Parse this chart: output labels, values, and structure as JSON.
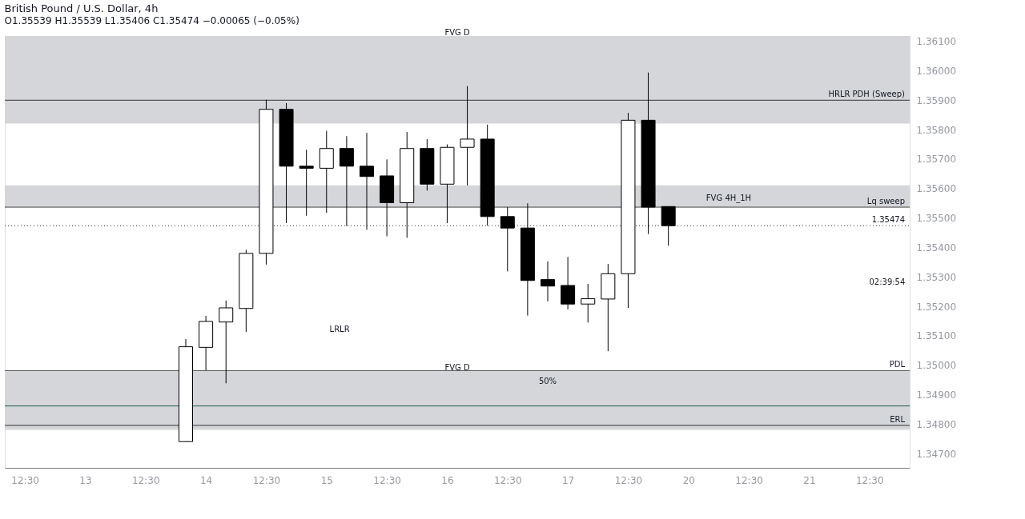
{
  "chart_data": {
    "type": "candlestick",
    "title": "British Pound / U.S. Dollar, 4h",
    "subtitle": "O1.35539 H1.35539 L1.35406 C1.35474 −0.00065 (−0.05%)",
    "categories": [
      "12:30",
      null,
      null,
      "13",
      null,
      null,
      "12:30",
      null,
      null,
      "14",
      null,
      null,
      "12:30",
      null,
      null,
      "15",
      null,
      null,
      "12:30",
      null,
      null,
      "16",
      null,
      null,
      "12:30",
      null,
      null,
      "17",
      null,
      null,
      "12:30",
      null,
      null,
      "20",
      null,
      null,
      "12:30",
      null,
      null,
      "21",
      null,
      null,
      "12:30",
      null
    ],
    "ohlc": [
      null,
      null,
      null,
      null,
      null,
      null,
      null,
      null,
      [
        1.34741,
        1.35089,
        1.34741,
        1.35063
      ],
      [
        1.35061,
        1.35168,
        1.34983,
        1.35149
      ],
      [
        1.35147,
        1.3522,
        1.34939,
        1.35195
      ],
      [
        1.35193,
        1.35392,
        1.35113,
        1.3538
      ],
      [
        1.3538,
        1.35902,
        1.35342,
        1.35869
      ],
      [
        1.35869,
        1.3589,
        1.35483,
        1.35676
      ],
      [
        1.35676,
        1.35732,
        1.35508,
        1.35669
      ],
      [
        1.35669,
        1.35796,
        1.35518,
        1.35736
      ],
      [
        1.35736,
        1.35778,
        1.35473,
        1.35676
      ],
      [
        1.35676,
        1.35789,
        1.3546,
        1.35641
      ],
      [
        1.35643,
        1.35699,
        1.35438,
        1.35552
      ],
      [
        1.35552,
        1.35792,
        1.35433,
        1.35736
      ],
      [
        1.35736,
        1.35768,
        1.35593,
        1.35615
      ],
      [
        1.35615,
        1.3575,
        1.35483,
        1.3574
      ],
      [
        1.3574,
        1.35948,
        1.35611,
        1.35768
      ],
      [
        1.35768,
        1.35817,
        1.35474,
        1.35505
      ],
      [
        1.35505,
        1.35537,
        1.35319,
        1.35466
      ],
      [
        1.35466,
        1.3555,
        1.35169,
        1.35288
      ],
      [
        1.35291,
        1.35353,
        1.35217,
        1.35269
      ],
      [
        1.35271,
        1.35368,
        1.3519,
        1.35208
      ],
      [
        1.35208,
        1.35276,
        1.35145,
        1.35226
      ],
      [
        1.35225,
        1.35344,
        1.35048,
        1.35311
      ],
      [
        1.35311,
        1.35857,
        1.35195,
        1.35832
      ],
      [
        1.35832,
        1.35994,
        1.35446,
        1.35537
      ],
      [
        1.35539,
        1.35539,
        1.35406,
        1.35474
      ],
      null,
      null,
      null,
      null,
      null,
      null,
      null,
      null,
      null,
      null,
      null
    ],
    "colors": [
      null,
      null,
      null,
      null,
      null,
      null,
      null,
      null,
      "#ffffff",
      "#ffffff",
      "#ffffff",
      "#ffffff",
      "#ffffff",
      "#000000",
      "#000000",
      "#ffffff",
      "#000000",
      "#000000",
      "#000000",
      "#ffffff",
      "#000000",
      "#ffffff",
      "#ffffff",
      "#000000",
      "#000000",
      "#000000",
      "#000000",
      "#000000",
      "#ffffff",
      "#ffffff",
      "#ffffff",
      "#000000",
      "#000000",
      null,
      null,
      null,
      null,
      null,
      null,
      null,
      null,
      null,
      null,
      null
    ],
    "ylim": [
      1.34652,
      1.36118
    ],
    "yticks": [
      {
        "value": 1.347,
        "label": "1.34700"
      },
      {
        "value": 1.348,
        "label": "1.34800"
      },
      {
        "value": 1.349,
        "label": "1.34900"
      },
      {
        "value": 1.35,
        "label": "1.35000"
      },
      {
        "value": 1.351,
        "label": "1.35100"
      },
      {
        "value": 1.352,
        "label": "1.35200"
      },
      {
        "value": 1.353,
        "label": "1.35300"
      },
      {
        "value": 1.354,
        "label": "1.35400"
      },
      {
        "value": 1.355,
        "label": "1.35500"
      },
      {
        "value": 1.356,
        "label": "1.35600"
      },
      {
        "value": 1.357,
        "label": "1.35700"
      },
      {
        "value": 1.358,
        "label": "1.35800"
      },
      {
        "value": 1.359,
        "label": "1.35900"
      },
      {
        "value": 1.36,
        "label": "1.36000"
      },
      {
        "value": 1.361,
        "label": "1.36100"
      }
    ],
    "bands": [
      {
        "axis": "y",
        "from": 1.35821,
        "to": 1.36118,
        "label": "FVG D",
        "color": "#d5d6da"
      },
      {
        "axis": "y",
        "from": 1.34781,
        "to": 1.34981,
        "label": "FVG D",
        "color": "#d5d6da"
      },
      {
        "axis": "y",
        "from": 1.35539,
        "to": 1.35611,
        "label": "FVG 4H_1H",
        "color": "#d5d6da"
      }
    ],
    "ref_lines": [
      {
        "axis": "y",
        "value": 1.359,
        "label": "HRLR PDH (Sweep)",
        "color": "#333333",
        "line_style": "solid"
      },
      {
        "axis": "y",
        "value": 1.34982,
        "label": "PDL",
        "color": "#555555",
        "line_style": "solid"
      },
      {
        "axis": "y",
        "value": 1.34796,
        "label": "ERL",
        "color": "#333333",
        "line_style": "solid"
      },
      {
        "axis": "y",
        "value": 1.34862,
        "color": "#1b5e4a",
        "line_style": "solid"
      },
      {
        "axis": "y",
        "value": 1.35537,
        "label": "Lq sweep",
        "color": "#333333",
        "line_style": "solid"
      },
      {
        "axis": "y",
        "value": 1.35474,
        "label": "1.35474",
        "color": "#333333",
        "line_style": "dotted"
      }
    ],
    "annotations": [
      "LRLR",
      "50%",
      "02:39:54"
    ],
    "grid": false
  }
}
